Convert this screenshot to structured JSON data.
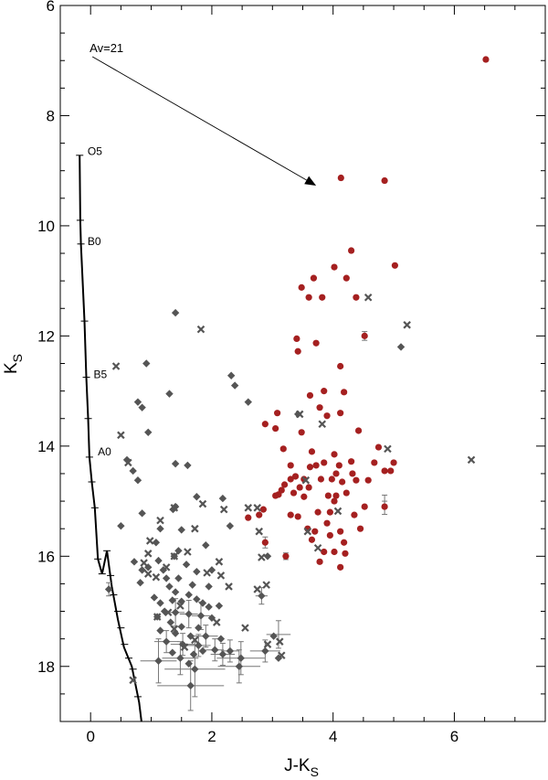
{
  "chart_data": {
    "type": "scatter",
    "title": "",
    "xlabel": "J-K",
    "xlabel_sub": "S",
    "ylabel": "K",
    "ylabel_sub": "S",
    "xlim": [
      -0.5,
      7.5
    ],
    "ylim": [
      19,
      6
    ],
    "y_inverted": true,
    "x_ticks": [
      0,
      2,
      4,
      6
    ],
    "y_ticks": [
      6,
      8,
      10,
      12,
      14,
      16,
      18
    ],
    "grid": false,
    "colors": {
      "red": "#a52020",
      "gray_diamond": "#555555",
      "gray_cross": "#555555",
      "line": "#000000"
    },
    "reddening_vector": {
      "label": "Av=21",
      "start": [
        0.03,
        6.93
      ],
      "end": [
        3.72,
        9.27
      ]
    },
    "main_sequence": {
      "points": [
        [
          -0.18,
          8.72
        ],
        [
          -0.17,
          9.9
        ],
        [
          -0.16,
          10.33
        ],
        [
          -0.1,
          11.73
        ],
        [
          -0.07,
          12.75
        ],
        [
          -0.04,
          13.5
        ],
        [
          -0.02,
          14.2
        ],
        [
          0.02,
          14.65
        ],
        [
          0.07,
          15.12
        ],
        [
          0.12,
          16.05
        ],
        [
          0.19,
          16.32
        ],
        [
          0.27,
          15.9
        ],
        [
          0.35,
          16.55
        ],
        [
          0.45,
          17.15
        ],
        [
          0.55,
          17.65
        ],
        [
          0.68,
          18.0
        ],
        [
          0.8,
          18.65
        ],
        [
          0.84,
          19.0
        ]
      ],
      "ticks": [
        [
          -0.18,
          8.72
        ],
        [
          -0.17,
          9.9
        ],
        [
          -0.16,
          10.33
        ],
        [
          -0.1,
          11.73
        ],
        [
          -0.07,
          12.75
        ],
        [
          -0.04,
          13.5
        ],
        [
          -0.02,
          14.2
        ],
        [
          0.02,
          14.65
        ],
        [
          0.07,
          15.12
        ],
        [
          0.12,
          16.05
        ],
        [
          0.19,
          16.32
        ],
        [
          0.27,
          15.9
        ],
        [
          0.33,
          16.35
        ],
        [
          0.38,
          16.7
        ],
        [
          0.45,
          17.0
        ],
        [
          0.5,
          17.3
        ],
        [
          0.56,
          17.6
        ],
        [
          0.63,
          17.85
        ],
        [
          0.7,
          18.05
        ],
        [
          0.78,
          18.55
        ]
      ],
      "spectral_labels": [
        {
          "label": "O5",
          "x": -0.05,
          "y": 8.65
        },
        {
          "label": "B0",
          "x": -0.05,
          "y": 10.28
        },
        {
          "label": "B5",
          "x": 0.05,
          "y": 12.7
        },
        {
          "label": "A0",
          "x": 0.12,
          "y": 14.1
        }
      ]
    },
    "series": [
      {
        "marker": "circle",
        "color": "#a52020",
        "points": [
          [
            6.52,
            6.98
          ],
          [
            4.85,
            9.18
          ],
          [
            4.13,
            9.13
          ],
          [
            4.3,
            10.45
          ],
          [
            3.68,
            10.95
          ],
          [
            4.02,
            10.75
          ],
          [
            3.48,
            11.12
          ],
          [
            4.22,
            10.95
          ],
          [
            5.02,
            10.72
          ],
          [
            3.6,
            11.3
          ],
          [
            3.82,
            11.3
          ],
          [
            4.38,
            11.3
          ],
          [
            3.4,
            12.05
          ],
          [
            3.42,
            12.28
          ],
          [
            3.72,
            12.13
          ],
          [
            4.52,
            12.0
          ],
          [
            4.12,
            12.55
          ],
          [
            3.62,
            13.08
          ],
          [
            3.85,
            13.0
          ],
          [
            4.18,
            13.02
          ],
          [
            3.08,
            13.4
          ],
          [
            3.78,
            13.3
          ],
          [
            3.9,
            13.45
          ],
          [
            4.12,
            13.4
          ],
          [
            4.42,
            13.72
          ],
          [
            2.88,
            13.6
          ],
          [
            3.05,
            13.68
          ],
          [
            3.48,
            13.75
          ],
          [
            4.75,
            14.02
          ],
          [
            3.18,
            14.05
          ],
          [
            3.65,
            14.1
          ],
          [
            4.02,
            14.15
          ],
          [
            4.3,
            14.28
          ],
          [
            3.85,
            14.3
          ],
          [
            5.0,
            14.3
          ],
          [
            4.68,
            14.3
          ],
          [
            3.3,
            14.35
          ],
          [
            3.62,
            14.38
          ],
          [
            3.72,
            14.35
          ],
          [
            4.1,
            14.35
          ],
          [
            4.95,
            14.45
          ],
          [
            4.05,
            14.5
          ],
          [
            4.85,
            14.45
          ],
          [
            3.38,
            14.55
          ],
          [
            3.52,
            14.6
          ],
          [
            3.8,
            14.6
          ],
          [
            4.32,
            14.5
          ],
          [
            4.58,
            14.62
          ],
          [
            3.2,
            14.7
          ],
          [
            3.3,
            14.6
          ],
          [
            3.45,
            14.75
          ],
          [
            3.6,
            14.75
          ],
          [
            3.98,
            14.6
          ],
          [
            4.15,
            14.65
          ],
          [
            4.38,
            14.62
          ],
          [
            3.15,
            14.8
          ],
          [
            3.35,
            14.85
          ],
          [
            3.52,
            14.92
          ],
          [
            3.92,
            14.9
          ],
          [
            4.22,
            14.85
          ],
          [
            4.05,
            14.9
          ],
          [
            3.05,
            14.9
          ],
          [
            3.1,
            14.88
          ],
          [
            4.02,
            15.0
          ],
          [
            3.75,
            15.2
          ],
          [
            3.95,
            15.2
          ],
          [
            4.35,
            15.25
          ],
          [
            4.52,
            15.1
          ],
          [
            4.85,
            15.1
          ],
          [
            2.85,
            15.15
          ],
          [
            2.6,
            15.3
          ],
          [
            2.78,
            15.25
          ],
          [
            3.3,
            15.25
          ],
          [
            3.42,
            15.28
          ],
          [
            3.58,
            15.5
          ],
          [
            3.7,
            15.55
          ],
          [
            3.9,
            15.4
          ],
          [
            4.12,
            15.55
          ],
          [
            4.45,
            15.5
          ],
          [
            3.65,
            15.7
          ],
          [
            3.95,
            15.62
          ],
          [
            4.18,
            15.75
          ],
          [
            2.88,
            15.75
          ],
          [
            3.85,
            15.92
          ],
          [
            4.02,
            15.92
          ],
          [
            3.22,
            16.0
          ],
          [
            4.2,
            15.95
          ],
          [
            3.78,
            16.1
          ],
          [
            4.12,
            16.2
          ]
        ]
      },
      {
        "marker": "diamond",
        "color": "#555555",
        "points": [
          [
            1.4,
            11.58
          ],
          [
            5.12,
            12.2
          ],
          [
            0.92,
            12.5
          ],
          [
            2.32,
            12.72
          ],
          [
            2.38,
            12.9
          ],
          [
            1.3,
            13.05
          ],
          [
            0.78,
            13.2
          ],
          [
            0.85,
            13.3
          ],
          [
            2.6,
            13.2
          ],
          [
            3.42,
            13.42
          ],
          [
            0.95,
            13.75
          ],
          [
            0.6,
            14.25
          ],
          [
            1.4,
            14.32
          ],
          [
            0.7,
            14.45
          ],
          [
            1.6,
            14.35
          ],
          [
            0.78,
            14.62
          ],
          [
            2.18,
            14.95
          ],
          [
            1.75,
            14.92
          ],
          [
            1.4,
            15.1
          ],
          [
            1.36,
            15.15
          ],
          [
            0.85,
            15.22
          ],
          [
            2.3,
            15.45
          ],
          [
            0.5,
            15.45
          ],
          [
            1.15,
            15.5
          ],
          [
            1.5,
            15.52
          ],
          [
            1.08,
            15.75
          ],
          [
            1.9,
            15.8
          ],
          [
            1.45,
            15.9
          ],
          [
            1.38,
            16.0
          ],
          [
            2.92,
            16.0
          ],
          [
            0.72,
            16.1
          ],
          [
            1.12,
            16.08
          ],
          [
            0.85,
            16.25
          ],
          [
            0.95,
            16.2
          ],
          [
            1.2,
            16.25
          ],
          [
            1.58,
            16.15
          ],
          [
            1.75,
            16.28
          ],
          [
            2.0,
            16.25
          ],
          [
            1.45,
            16.4
          ],
          [
            1.25,
            16.4
          ],
          [
            1.68,
            16.52
          ],
          [
            0.82,
            16.48
          ],
          [
            1.95,
            16.55
          ],
          [
            1.3,
            16.55
          ],
          [
            0.3,
            16.6
          ],
          [
            1.4,
            16.65
          ],
          [
            1.62,
            16.7
          ],
          [
            1.75,
            16.78
          ],
          [
            1.05,
            16.75
          ],
          [
            1.35,
            16.8
          ],
          [
            1.5,
            16.82
          ],
          [
            1.85,
            16.85
          ],
          [
            1.15,
            16.85
          ],
          [
            1.95,
            16.92
          ],
          [
            2.12,
            16.9
          ],
          [
            1.22,
            17.0
          ],
          [
            1.4,
            17.02
          ],
          [
            1.62,
            17.05
          ],
          [
            1.82,
            17.08
          ],
          [
            2.0,
            17.12
          ],
          [
            1.1,
            17.1
          ],
          [
            1.32,
            17.2
          ],
          [
            1.5,
            17.28
          ],
          [
            1.78,
            17.3
          ],
          [
            1.15,
            17.35
          ],
          [
            1.4,
            17.4
          ],
          [
            1.65,
            17.45
          ],
          [
            1.9,
            17.45
          ],
          [
            2.15,
            17.5
          ],
          [
            3.02,
            17.45
          ],
          [
            1.25,
            17.55
          ],
          [
            1.52,
            17.6
          ],
          [
            1.78,
            17.62
          ],
          [
            2.05,
            17.7
          ],
          [
            2.3,
            17.72
          ],
          [
            2.88,
            17.72
          ],
          [
            1.7,
            17.78
          ],
          [
            2.18,
            17.78
          ],
          [
            1.48,
            17.85
          ],
          [
            1.12,
            17.9
          ],
          [
            2.48,
            17.85
          ],
          [
            1.72,
            18.05
          ],
          [
            1.65,
            18.35
          ],
          [
            2.45,
            18.0
          ],
          [
            3.1,
            17.85
          ],
          [
            2.82,
            16.72
          ],
          [
            1.85,
            17.72
          ],
          [
            1.62,
            17.95
          ],
          [
            1.35,
            17.75
          ]
        ]
      },
      {
        "marker": "cross",
        "color": "#555555",
        "points": [
          [
            1.82,
            11.88
          ],
          [
            5.22,
            11.8
          ],
          [
            4.58,
            11.3
          ],
          [
            0.42,
            12.55
          ],
          [
            3.45,
            13.42
          ],
          [
            3.82,
            13.6
          ],
          [
            0.5,
            13.8
          ],
          [
            4.9,
            14.05
          ],
          [
            6.28,
            14.25
          ],
          [
            0.62,
            14.3
          ],
          [
            3.55,
            14.62
          ],
          [
            4.08,
            15.18
          ],
          [
            2.2,
            15.15
          ],
          [
            1.85,
            15.05
          ],
          [
            1.38,
            15.12
          ],
          [
            2.6,
            15.12
          ],
          [
            2.75,
            15.12
          ],
          [
            2.78,
            15.55
          ],
          [
            3.58,
            15.55
          ],
          [
            3.75,
            15.85
          ],
          [
            1.15,
            15.35
          ],
          [
            1.72,
            15.5
          ],
          [
            0.98,
            15.72
          ],
          [
            0.88,
            16.12
          ],
          [
            0.95,
            15.95
          ],
          [
            1.6,
            15.92
          ],
          [
            2.12,
            16.1
          ],
          [
            2.82,
            16.02
          ],
          [
            1.38,
            16.0
          ],
          [
            0.95,
            16.32
          ],
          [
            1.08,
            16.38
          ],
          [
            1.25,
            16.2
          ],
          [
            1.92,
            16.3
          ],
          [
            2.15,
            16.35
          ],
          [
            2.28,
            16.55
          ],
          [
            2.75,
            16.6
          ],
          [
            2.9,
            16.52
          ],
          [
            1.48,
            16.9
          ],
          [
            1.28,
            17.02
          ],
          [
            1.1,
            17.1
          ],
          [
            2.08,
            17.2
          ],
          [
            2.55,
            17.3
          ],
          [
            3.12,
            17.55
          ],
          [
            2.92,
            17.6
          ],
          [
            0.7,
            18.25
          ],
          [
            3.15,
            17.8
          ],
          [
            1.55,
            17.65
          ],
          [
            1.72,
            17.52
          ],
          [
            1.38,
            17.32
          ]
        ]
      }
    ],
    "error_bars": [
      {
        "x": 4.52,
        "y": 12.0,
        "dy": 0.08
      },
      {
        "x": 4.85,
        "y": 14.98,
        "dy": 0.09
      },
      {
        "x": 4.85,
        "y": 15.12,
        "dy": 0.12
      },
      {
        "x": 2.88,
        "y": 15.75,
        "dy": 0.1
      },
      {
        "x": 1.72,
        "y": 18.05,
        "dx": 0.5,
        "dy": 0.5
      },
      {
        "x": 1.65,
        "y": 18.35,
        "dx": 0.55,
        "dy": 0.45
      },
      {
        "x": 1.12,
        "y": 17.9,
        "dx": 0.3,
        "dy": 0.4
      },
      {
        "x": 2.48,
        "y": 17.85,
        "dx": 0.4,
        "dy": 0.3
      },
      {
        "x": 2.45,
        "y": 18.0,
        "dx": 0.35,
        "dy": 0.3
      },
      {
        "x": 3.1,
        "y": 17.42,
        "dx": 0.2,
        "dy": 0.25
      },
      {
        "x": 2.88,
        "y": 17.72,
        "dx": 0.25,
        "dy": 0.2
      },
      {
        "x": 2.82,
        "y": 16.72,
        "dx": 0.1,
        "dy": 0.15
      },
      {
        "x": 1.48,
        "y": 17.85,
        "dx": 0.3,
        "dy": 0.3
      },
      {
        "x": 2.18,
        "y": 17.78,
        "dx": 0.2,
        "dy": 0.2
      },
      {
        "x": 2.3,
        "y": 17.72,
        "dx": 0.15,
        "dy": 0.2
      },
      {
        "x": 2.05,
        "y": 17.7,
        "dx": 0.15,
        "dy": 0.2
      },
      {
        "x": 1.25,
        "y": 17.55,
        "dx": 0.2,
        "dy": 0.2
      },
      {
        "x": 1.78,
        "y": 17.62,
        "dx": 0.2,
        "dy": 0.2
      },
      {
        "x": 1.52,
        "y": 17.6,
        "dx": 0.2,
        "dy": 0.2
      },
      {
        "x": 1.9,
        "y": 17.45,
        "dx": 0.2,
        "dy": 0.2
      },
      {
        "x": 0.3,
        "y": 16.6,
        "dy": 0.12
      },
      {
        "x": 1.4,
        "y": 17.02,
        "dx": 0.15,
        "dy": 0.25
      },
      {
        "x": 1.62,
        "y": 17.05,
        "dx": 0.15,
        "dy": 0.25
      },
      {
        "x": 1.82,
        "y": 17.08,
        "dx": 0.15,
        "dy": 0.25
      },
      {
        "x": 3.22,
        "y": 16.0,
        "dy": 0.06
      }
    ]
  }
}
